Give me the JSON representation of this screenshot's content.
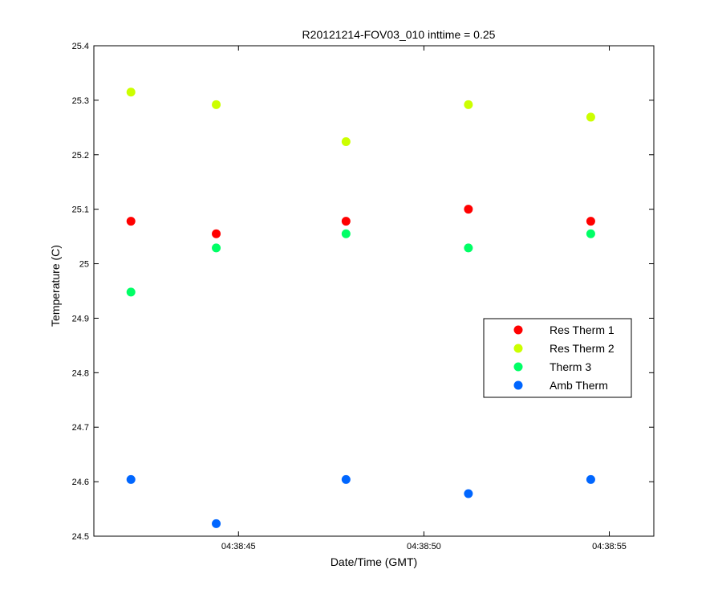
{
  "chart_data": {
    "type": "scatter",
    "title": "R20121214-FOV03_010 inttime = 0.25",
    "xlabel": "Date/Time (GMT)",
    "ylabel": "Temperature (C)",
    "xlim": [
      "04:38:41.1",
      "04:38:56.2"
    ],
    "ylim": [
      24.5,
      25.4
    ],
    "x_ticks": [
      "04:38:45",
      "04:38:50",
      "04:38:55"
    ],
    "y_ticks": [
      24.5,
      24.6,
      24.7,
      24.8,
      24.9,
      25,
      25.1,
      25.2,
      25.3,
      25.4
    ],
    "y_tick_labels": [
      "24.5",
      "24.6",
      "24.7",
      "24.8",
      "24.9",
      "25",
      "25.1",
      "25.2",
      "25.3",
      "25.4"
    ],
    "grid": false,
    "legend_position": "right",
    "x": [
      "04:38:42.1",
      "04:38:44.4",
      "04:38:47.9",
      "04:38:51.2",
      "04:38:54.5"
    ],
    "series": [
      {
        "name": "Res Therm 1",
        "color": "#ff0000",
        "values": [
          25.078,
          25.055,
          25.078,
          25.1,
          25.078
        ]
      },
      {
        "name": "Res Therm 2",
        "color": "#ccff00",
        "values": [
          25.315,
          25.292,
          25.224,
          25.292,
          25.269
        ]
      },
      {
        "name": "Therm 3",
        "color": "#00ff66",
        "values": [
          24.948,
          25.029,
          25.055,
          25.029,
          25.055
        ]
      },
      {
        "name": "Amb Therm",
        "color": "#0066ff",
        "values": [
          24.604,
          24.523,
          24.604,
          24.578,
          24.604
        ]
      }
    ]
  }
}
